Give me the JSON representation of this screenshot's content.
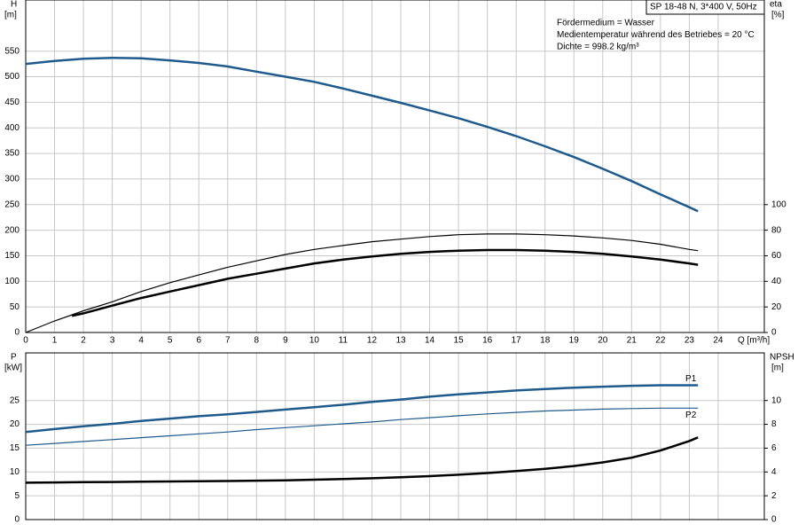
{
  "chart_data": [
    {
      "type": "line",
      "info_box": "SP 18-48 N, 3*400 V, 50Hz",
      "annotations": [
        "Fördermedium = Wasser",
        "Medientemperatur während des Betriebes = 20 °C",
        "Dichte = 998.2 kg/m³"
      ],
      "ylabel": "H",
      "yunit": "[m]",
      "y2label": "eta",
      "y2unit": "[%]",
      "xlabel": "Q [m³/h]",
      "xlim": [
        0,
        25.6
      ],
      "xticks": [
        0,
        1,
        2,
        3,
        4,
        5,
        6,
        7,
        8,
        9,
        10,
        11,
        12,
        13,
        14,
        15,
        16,
        17,
        18,
        19,
        20,
        21,
        22,
        23,
        24
      ],
      "ylim": [
        0,
        650
      ],
      "yticks": [
        0,
        50,
        100,
        150,
        200,
        250,
        300,
        350,
        400,
        450,
        500,
        550
      ],
      "y2lim": [
        0,
        260
      ],
      "y2ticks": [
        0,
        20,
        40,
        60,
        80,
        100
      ],
      "grid": true,
      "series": [
        {
          "color": "#1f5a8c",
          "linewidth": 2.5,
          "x": [
            0,
            1,
            2,
            3,
            4,
            5,
            6,
            7,
            8,
            9,
            10,
            11,
            12,
            13,
            14,
            15,
            16,
            17,
            18,
            19,
            20,
            21,
            22,
            23,
            23.3
          ],
          "values": [
            525,
            531,
            535,
            537,
            536,
            532,
            527,
            520,
            510,
            500,
            490,
            477,
            463,
            449,
            434,
            419,
            402,
            384,
            364,
            343,
            320,
            296,
            270,
            245,
            237
          ]
        },
        {
          "color": "#000000",
          "linewidth": 1.2,
          "axis": "y2",
          "x": [
            0,
            1,
            2,
            3,
            4,
            5,
            6,
            7,
            8,
            9,
            10,
            11,
            12,
            13,
            14,
            15,
            16,
            17,
            18,
            19,
            20,
            21,
            22,
            23,
            23.3
          ],
          "values": [
            0,
            9,
            17,
            24,
            32,
            39,
            45,
            51,
            56,
            61,
            65,
            68,
            71,
            73,
            75,
            76.5,
            77,
            77,
            76.5,
            75.5,
            74,
            72,
            69,
            65,
            64
          ]
        },
        {
          "color": "#000000",
          "linewidth": 2.5,
          "axis": "y2",
          "x": [
            1.6,
            2,
            3,
            4,
            5,
            6,
            7,
            8,
            9,
            10,
            11,
            12,
            13,
            14,
            15,
            16,
            17,
            18,
            19,
            20,
            21,
            22,
            23,
            23.3
          ],
          "values": [
            13,
            15,
            21,
            27,
            32,
            37,
            42,
            46,
            50,
            54,
            57,
            59.5,
            61.5,
            63,
            64,
            64.5,
            64.5,
            64,
            63,
            61.5,
            59.5,
            57,
            54,
            53
          ]
        }
      ]
    },
    {
      "type": "line",
      "ylabel": "P",
      "yunit": "[kW]",
      "y2label": "NPSH",
      "y2unit": "[m]",
      "xlim": [
        0,
        25.6
      ],
      "ylim": [
        0,
        35
      ],
      "yticks": [
        0,
        5,
        10,
        15,
        20,
        25
      ],
      "y2lim": [
        0,
        14
      ],
      "y2ticks": [
        0,
        2,
        4,
        6,
        8,
        10
      ],
      "grid": true,
      "series": [
        {
          "name": "P1",
          "color": "#1f5a8c",
          "linewidth": 2.5,
          "x": [
            0,
            1,
            2,
            3,
            4,
            5,
            6,
            7,
            8,
            9,
            10,
            11,
            12,
            13,
            14,
            15,
            16,
            17,
            18,
            19,
            20,
            21,
            22,
            23,
            23.3
          ],
          "values": [
            18.4,
            19.0,
            19.6,
            20.1,
            20.7,
            21.2,
            21.7,
            22.1,
            22.6,
            23.1,
            23.6,
            24.1,
            24.7,
            25.2,
            25.8,
            26.3,
            26.7,
            27.1,
            27.4,
            27.7,
            27.9,
            28.1,
            28.2,
            28.2,
            28.2
          ]
        },
        {
          "name": "P2",
          "color": "#1f5a8c",
          "linewidth": 1.2,
          "x": [
            0,
            1,
            2,
            3,
            4,
            5,
            6,
            7,
            8,
            9,
            10,
            11,
            12,
            13,
            14,
            15,
            16,
            17,
            18,
            19,
            20,
            21,
            22,
            23,
            23.3
          ],
          "values": [
            15.6,
            16.0,
            16.4,
            16.8,
            17.2,
            17.6,
            18.0,
            18.4,
            18.9,
            19.3,
            19.7,
            20.1,
            20.5,
            21.0,
            21.4,
            21.8,
            22.2,
            22.5,
            22.8,
            23.0,
            23.2,
            23.3,
            23.4,
            23.4,
            23.4
          ]
        },
        {
          "color": "#000000",
          "linewidth": 2.5,
          "axis": "y2",
          "x": [
            0,
            1,
            2,
            3,
            4,
            5,
            6,
            7,
            8,
            9,
            10,
            11,
            12,
            13,
            14,
            15,
            16,
            17,
            18,
            19,
            20,
            21,
            22,
            23,
            23.3
          ],
          "values": [
            3.1,
            3.12,
            3.14,
            3.16,
            3.18,
            3.2,
            3.22,
            3.24,
            3.27,
            3.3,
            3.35,
            3.4,
            3.47,
            3.55,
            3.65,
            3.77,
            3.91,
            4.07,
            4.26,
            4.5,
            4.8,
            5.2,
            5.8,
            6.6,
            6.9
          ]
        }
      ]
    }
  ]
}
